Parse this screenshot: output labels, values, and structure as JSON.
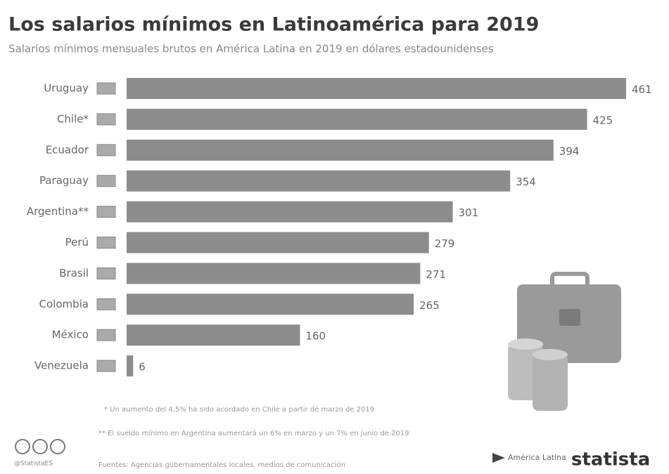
{
  "chart_data": {
    "type": "bar",
    "orientation": "horizontal",
    "title": "Los salarios mínimos en Latinoamérica para 2019",
    "subtitle": "Salarios mínimos mensuales brutos en América Latina en 2019 en dólares estadounidenses",
    "categories": [
      "Uruguay",
      "Chile*",
      "Ecuador",
      "Paraguay",
      "Argentina**",
      "Perú",
      "Brasil",
      "Colombia",
      "México",
      "Venezuela"
    ],
    "values": [
      461,
      425,
      394,
      354,
      301,
      279,
      271,
      265,
      160,
      6
    ],
    "color": "#8c8c8c",
    "notes": [
      "* Un aumento del 4,5% ha sido acordado en Chile a partir de marzo de 2019",
      "** El sueldo mínimo en Argentina aumentará un 6% en marzo y un 7% en junio de 2019"
    ],
    "source": "Fuentes: Agencias gubernamentales locales, medios de comunicación",
    "handle": "@StatistaES",
    "logo_partner": "América Latina",
    "logo": "statista"
  }
}
